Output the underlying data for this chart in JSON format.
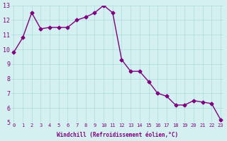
{
  "x": [
    0,
    1,
    2,
    3,
    4,
    5,
    6,
    7,
    8,
    9,
    10,
    11,
    12,
    13,
    14,
    15,
    16,
    17,
    18,
    19,
    20,
    21,
    22,
    23
  ],
  "y": [
    9.8,
    10.8,
    12.5,
    11.4,
    11.5,
    11.5,
    11.5,
    12.0,
    12.2,
    12.5,
    13.0,
    12.5,
    9.3,
    8.5,
    8.5,
    7.8,
    7.0,
    6.8,
    6.2,
    6.2,
    6.5,
    6.4,
    6.3,
    5.2
  ],
  "xlabel": "Windchill (Refroidissement éolien,°C)",
  "xlim": [
    0,
    23
  ],
  "ylim": [
    5,
    13
  ],
  "line_color": "#800080",
  "marker_color": "#800080",
  "bg_color": "#d4f0f0",
  "grid_color": "#aadddd",
  "tick_label_color": "#800080"
}
